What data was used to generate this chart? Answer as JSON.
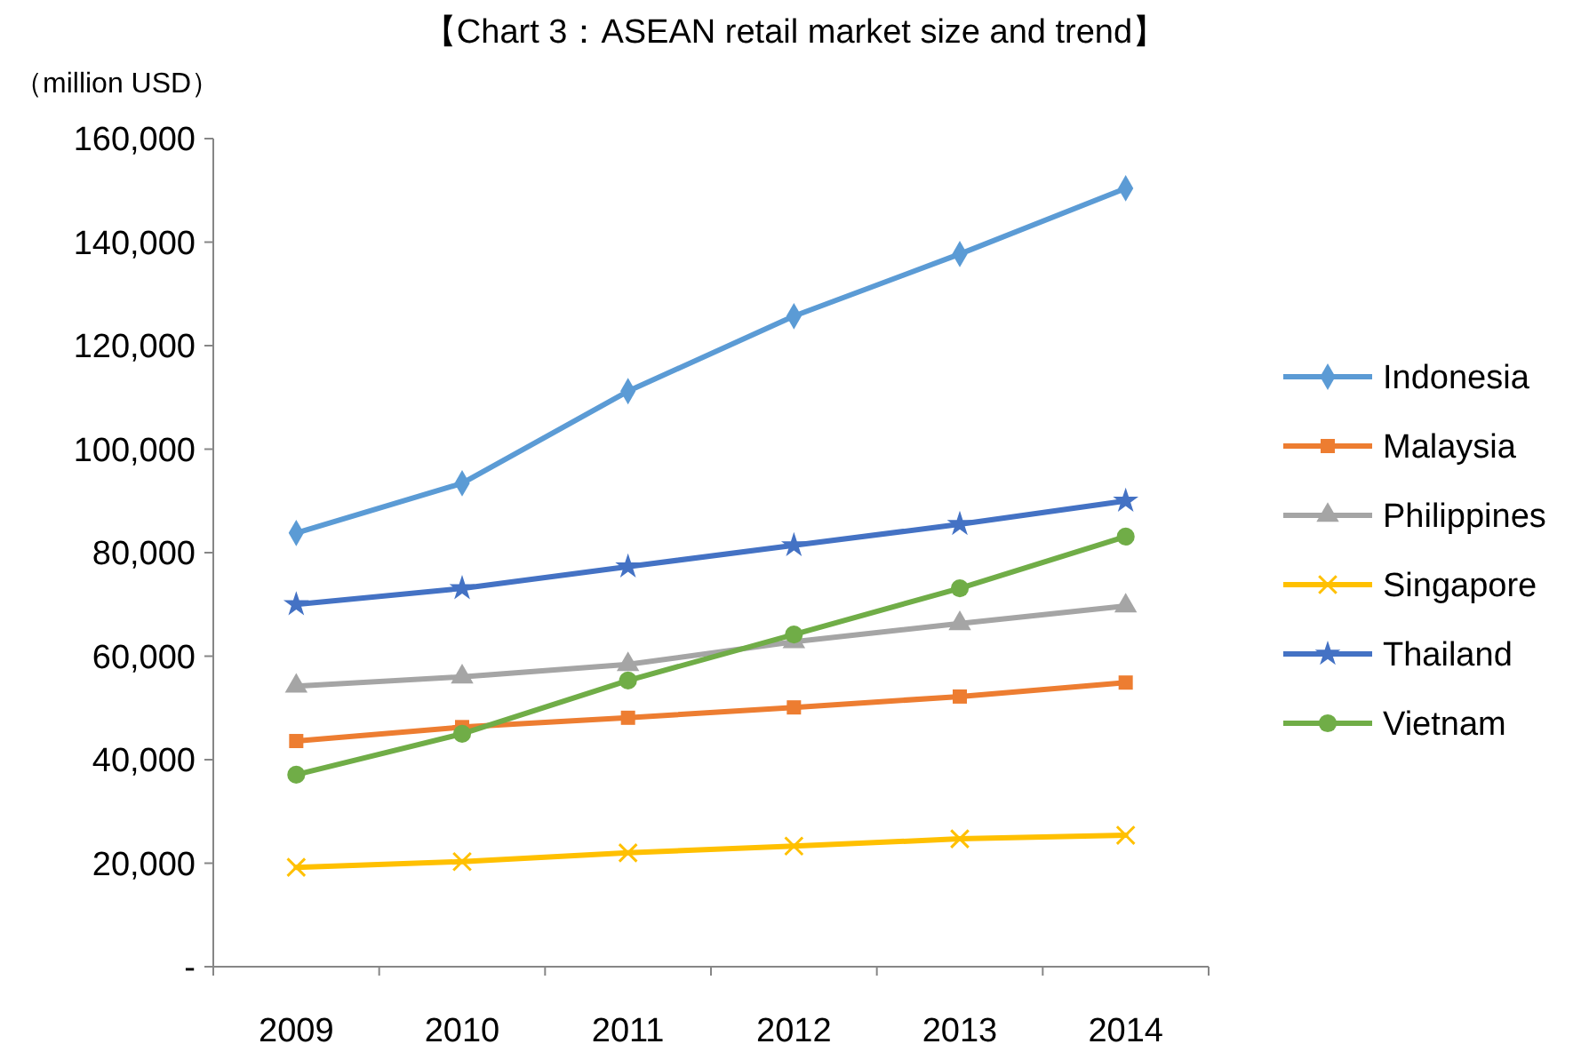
{
  "chart_data": {
    "type": "line",
    "title": "【Chart 3：ASEAN retail market size and trend】",
    "ylabel": "（million USD）",
    "categories": [
      "2009",
      "2010",
      "2011",
      "2012",
      "2013",
      "2014"
    ],
    "ylim": [
      0,
      160000
    ],
    "yticks": [
      {
        "value": 0,
        "label": "-"
      },
      {
        "value": 20000,
        "label": "20,000"
      },
      {
        "value": 40000,
        "label": "40,000"
      },
      {
        "value": 60000,
        "label": "60,000"
      },
      {
        "value": 80000,
        "label": "80,000"
      },
      {
        "value": 100000,
        "label": "100,000"
      },
      {
        "value": 120000,
        "label": "120,000"
      },
      {
        "value": 140000,
        "label": "140,000"
      },
      {
        "value": 160000,
        "label": "160,000"
      }
    ],
    "grid": false,
    "legend": "right",
    "line_style": "solid",
    "series": [
      {
        "name": "Indonesia",
        "color": "#5b9bd5",
        "marker": "diamond",
        "values": [
          83800,
          93400,
          111200,
          125700,
          137700,
          150400
        ]
      },
      {
        "name": "Malaysia",
        "color": "#ed7d31",
        "marker": "square",
        "values": [
          43600,
          46300,
          48100,
          50100,
          52200,
          54900
        ]
      },
      {
        "name": "Philippines",
        "color": "#a5a5a5",
        "marker": "triangle",
        "values": [
          54200,
          56000,
          58400,
          62800,
          66300,
          69700
        ]
      },
      {
        "name": "Singapore",
        "color": "#ffc000",
        "marker": "cross",
        "values": [
          19200,
          20300,
          22000,
          23300,
          24700,
          25400
        ]
      },
      {
        "name": "Thailand",
        "color": "#4472c4",
        "marker": "star",
        "values": [
          70000,
          73100,
          77300,
          81400,
          85500,
          90000
        ]
      },
      {
        "name": "Vietnam",
        "color": "#70ad47",
        "marker": "circle",
        "values": [
          37100,
          45000,
          55300,
          64200,
          73100,
          83100
        ]
      }
    ]
  }
}
